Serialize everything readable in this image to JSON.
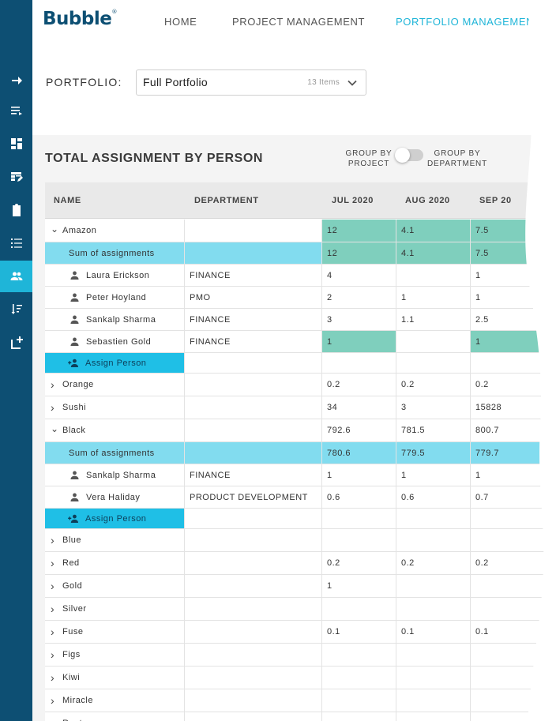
{
  "header": {
    "logo": "Bubble",
    "logo_tm": "®",
    "nav": [
      "HOME",
      "PROJECT MANAGEMENT",
      "PORTFOLIO MANAGEMENT"
    ],
    "active_nav": "PORTFOLIO MANAGEMENT"
  },
  "sidebar": {
    "items": [
      "arrow-right-icon",
      "playlist-icon",
      "dashboard-icon",
      "table-edit-icon",
      "clipboard-icon",
      "list-icon",
      "people-icon",
      "sort-icon",
      "add-box-icon"
    ],
    "active_item": "people-icon"
  },
  "portfolio": {
    "label": "PORTFOLIO:",
    "value": "Full Portfolio",
    "count": "13 Items"
  },
  "section": {
    "title": "TOTAL ASSIGNMENT BY PERSON",
    "toggle_left": "GROUP BY PROJECT",
    "toggle_right": "GROUP BY DEPARTMENT"
  },
  "table": {
    "columns": [
      "NAME",
      "DEPARTMENT",
      "JUL 2020",
      "AUG 2020",
      "SEP 20"
    ],
    "rows": [
      {
        "type": "group",
        "expanded": true,
        "name": "Amazon",
        "dept": "",
        "m1": "12",
        "m2": "4.1",
        "m3": "7.5",
        "teal": [
          true,
          true,
          true
        ]
      },
      {
        "type": "sum",
        "name": "Sum of assignments",
        "dept": "",
        "m1": "12",
        "m2": "4.1",
        "m3": "7.5",
        "teal": [
          true,
          true,
          true
        ]
      },
      {
        "type": "person",
        "name": "Laura Erickson",
        "dept": "FINANCE",
        "m1": "4",
        "m2": "",
        "m3": "1"
      },
      {
        "type": "person",
        "name": "Peter Hoyland",
        "dept": "PMO",
        "m1": "2",
        "m2": "1",
        "m3": "1"
      },
      {
        "type": "person",
        "name": "Sankalp Sharma",
        "dept": "FINANCE",
        "m1": "3",
        "m2": "1.1",
        "m3": "2.5"
      },
      {
        "type": "person",
        "name": "Sebastien Gold",
        "dept": "FINANCE",
        "m1": "1",
        "m2": "",
        "m3": "1",
        "teal": [
          true,
          false,
          true
        ]
      },
      {
        "type": "assign",
        "name": "Assign Person",
        "dept": "",
        "m1": "",
        "m2": "",
        "m3": ""
      },
      {
        "type": "group",
        "expanded": false,
        "name": "Orange",
        "dept": "",
        "m1": "0.2",
        "m2": "0.2",
        "m3": "0.2"
      },
      {
        "type": "group",
        "expanded": false,
        "name": "Sushi",
        "dept": "",
        "m1": "34",
        "m2": "3",
        "m3": "15828"
      },
      {
        "type": "group",
        "expanded": true,
        "name": "Black",
        "dept": "",
        "m1": "792.6",
        "m2": "781.5",
        "m3": "800.7"
      },
      {
        "type": "sum",
        "name": "Sum of assignments",
        "dept": "",
        "m1": "780.6",
        "m2": "779.5",
        "m3": "779.7"
      },
      {
        "type": "person",
        "name": "Sankalp Sharma",
        "dept": "FINANCE",
        "m1": "1",
        "m2": "1",
        "m3": "1"
      },
      {
        "type": "person",
        "name": "Vera Haliday",
        "dept": "PRODUCT DEVELOPMENT",
        "m1": "0.6",
        "m2": "0.6",
        "m3": "0.7"
      },
      {
        "type": "assign",
        "name": "Assign Person",
        "dept": "",
        "m1": "",
        "m2": "",
        "m3": ""
      },
      {
        "type": "group",
        "expanded": false,
        "name": "Blue",
        "dept": "",
        "m1": "",
        "m2": "",
        "m3": ""
      },
      {
        "type": "group",
        "expanded": false,
        "name": "Red",
        "dept": "",
        "m1": "0.2",
        "m2": "0.2",
        "m3": "0.2"
      },
      {
        "type": "group",
        "expanded": false,
        "name": "Gold",
        "dept": "",
        "m1": "1",
        "m2": "",
        "m3": ""
      },
      {
        "type": "group",
        "expanded": false,
        "name": "Silver",
        "dept": "",
        "m1": "",
        "m2": "",
        "m3": ""
      },
      {
        "type": "group",
        "expanded": false,
        "name": "Fuse",
        "dept": "",
        "m1": "0.1",
        "m2": "0.1",
        "m3": "0.1"
      },
      {
        "type": "group",
        "expanded": false,
        "name": "Figs",
        "dept": "",
        "m1": "",
        "m2": "",
        "m3": ""
      },
      {
        "type": "group",
        "expanded": false,
        "name": "Kiwi",
        "dept": "",
        "m1": "",
        "m2": "",
        "m3": ""
      },
      {
        "type": "group",
        "expanded": false,
        "name": "Miracle",
        "dept": "",
        "m1": "",
        "m2": "",
        "m3": ""
      },
      {
        "type": "group",
        "expanded": false,
        "name": "Router",
        "dept": "",
        "m1": "",
        "m2": "",
        "m3": ""
      }
    ]
  },
  "colors": {
    "sidebar": "#0d4f73",
    "accent": "#1fb5d8",
    "sum_row": "#82dcef",
    "teal_cell": "#7fcfbd"
  }
}
